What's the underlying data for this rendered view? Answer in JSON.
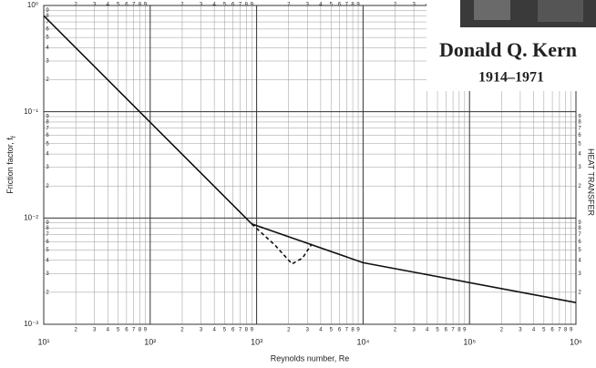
{
  "chart_data": {
    "type": "line",
    "x_label": "Reynolds number, Re",
    "y_label": "Friction factor, f",
    "y_label_subscript": "f",
    "right_label": "HEAT TRANSFER",
    "annotations": [
      "Donald Q. Kern",
      "1914–1971"
    ],
    "minor_tick_labels": [
      "1",
      "2",
      "3",
      "4",
      "5",
      "6",
      "7",
      "8",
      "9"
    ],
    "x_log": true,
    "y_log": true,
    "grid": true,
    "xlim": [
      10,
      1000000
    ],
    "ylim": [
      0.001,
      1
    ],
    "xticks": [
      {
        "value": 10,
        "label": "10¹"
      },
      {
        "value": 100,
        "label": "10²"
      },
      {
        "value": 1000,
        "label": "10³"
      },
      {
        "value": 10000,
        "label": "10⁴"
      },
      {
        "value": 100000,
        "label": "10⁵"
      },
      {
        "value": 1000000,
        "label": "10⁶"
      }
    ],
    "yticks": [
      {
        "value": 0.001,
        "label": "10⁻³"
      },
      {
        "value": 0.01,
        "label": "10⁻²"
      },
      {
        "value": 0.1,
        "label": "10⁻¹"
      },
      {
        "value": 1,
        "label": "10⁰"
      }
    ],
    "series": [
      {
        "color": "#111111",
        "dash": false,
        "x": [
          10,
          900,
          10000,
          1000000
        ],
        "values": [
          0.8,
          0.0088,
          0.0038,
          0.0016
        ]
      },
      {
        "color": "#111111",
        "dash": true,
        "x": [
          900,
          1500,
          2150,
          2700,
          3300
        ],
        "values": [
          0.0088,
          0.0055,
          0.0037,
          0.0042,
          0.0057
        ]
      }
    ]
  }
}
